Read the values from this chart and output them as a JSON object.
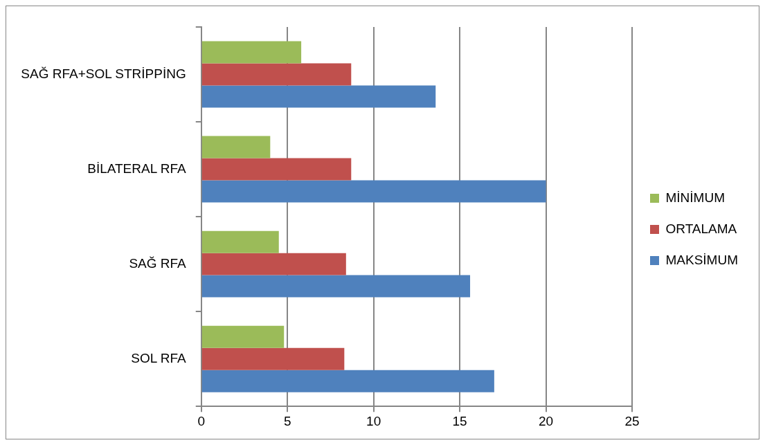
{
  "chart_data": {
    "type": "bar",
    "orientation": "horizontal",
    "categories": [
      "SAĞ RFA+SOL STRİPPİNG",
      "BİLATERAL RFA",
      "SAĞ RFA",
      "SOL RFA"
    ],
    "series": [
      {
        "name": "MİNİMUM",
        "color": "#9bbb59",
        "values": [
          5.8,
          4.0,
          4.5,
          4.8
        ]
      },
      {
        "name": "ORTALAMA",
        "color": "#c0504d",
        "values": [
          8.7,
          8.7,
          8.4,
          8.3
        ]
      },
      {
        "name": "MAKSİMUM",
        "color": "#4f81bd",
        "values": [
          13.6,
          20,
          15.6,
          17
        ]
      }
    ],
    "xlim": [
      0,
      25
    ],
    "xticks": [
      0,
      5,
      10,
      15,
      20,
      25
    ],
    "grid": "x",
    "legend": "right"
  }
}
